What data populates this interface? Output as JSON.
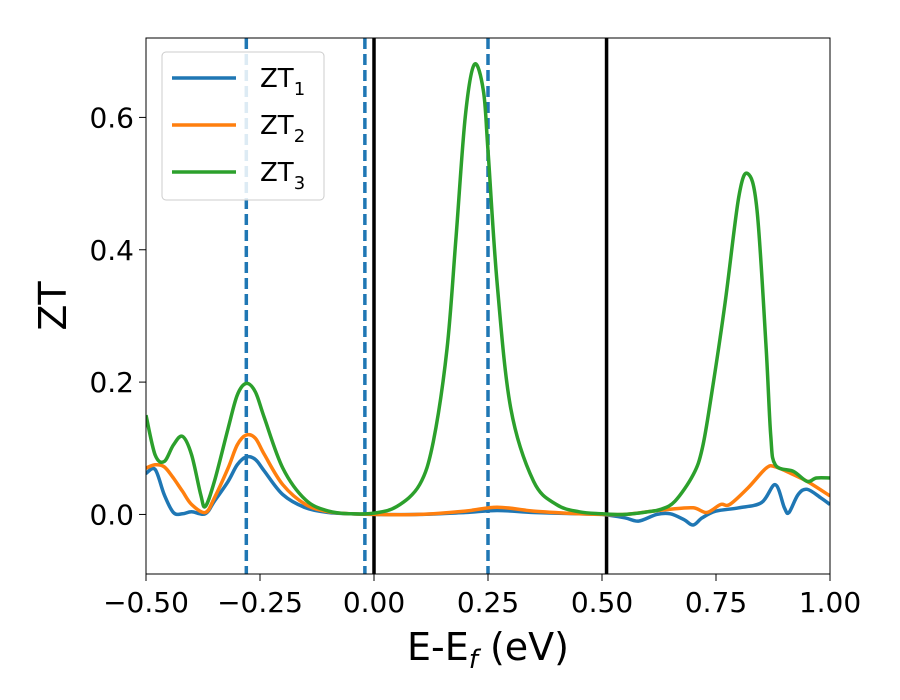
{
  "chart_data": {
    "type": "line",
    "xlabel": "E-E",
    "xlabel_sub": "f",
    "xlabel_unit": " (eV)",
    "ylabel": "ZT",
    "xlim": [
      -0.5,
      1.0
    ],
    "ylim": [
      -0.09,
      0.72
    ],
    "xticks": [
      -0.5,
      -0.25,
      0.0,
      0.25,
      0.5,
      0.75,
      1.0
    ],
    "xtick_labels": [
      "−0.50",
      "−0.25",
      "0.00",
      "0.25",
      "0.50",
      "0.75",
      "1.00"
    ],
    "yticks": [
      0.0,
      0.2,
      0.4,
      0.6
    ],
    "ytick_labels": [
      "0.0",
      "0.2",
      "0.4",
      "0.6"
    ],
    "grid": false,
    "legend_position": "top-left",
    "vlines_dashed": {
      "color": "#1f77b4",
      "x": [
        -0.28,
        -0.02,
        0.25
      ]
    },
    "vlines_solid": {
      "color": "#000000",
      "x": [
        0.0,
        0.51
      ]
    },
    "series": [
      {
        "name": "ZT",
        "subscript": "1",
        "color": "#1f77b4",
        "points": [
          [
            -0.5,
            0.062
          ],
          [
            -0.48,
            0.068
          ],
          [
            -0.46,
            0.03
          ],
          [
            -0.44,
            0.003
          ],
          [
            -0.42,
            0.001
          ],
          [
            -0.4,
            0.004
          ],
          [
            -0.37,
            0.001
          ],
          [
            -0.35,
            0.02
          ],
          [
            -0.32,
            0.05
          ],
          [
            -0.3,
            0.075
          ],
          [
            -0.28,
            0.087
          ],
          [
            -0.26,
            0.083
          ],
          [
            -0.24,
            0.065
          ],
          [
            -0.2,
            0.03
          ],
          [
            -0.15,
            0.01
          ],
          [
            -0.1,
            0.003
          ],
          [
            -0.05,
            0.001
          ],
          [
            0.0,
            0.0
          ],
          [
            0.1,
            0.0
          ],
          [
            0.2,
            0.003
          ],
          [
            0.27,
            0.006
          ],
          [
            0.35,
            0.003
          ],
          [
            0.45,
            0.001
          ],
          [
            0.5,
            0.0
          ],
          [
            0.55,
            -0.005
          ],
          [
            0.58,
            -0.01
          ],
          [
            0.62,
            0.0
          ],
          [
            0.65,
            0.001
          ],
          [
            0.68,
            -0.008
          ],
          [
            0.7,
            -0.016
          ],
          [
            0.72,
            -0.005
          ],
          [
            0.75,
            0.005
          ],
          [
            0.8,
            0.01
          ],
          [
            0.85,
            0.018
          ],
          [
            0.88,
            0.045
          ],
          [
            0.9,
            0.01
          ],
          [
            0.91,
            0.003
          ],
          [
            0.93,
            0.03
          ],
          [
            0.95,
            0.038
          ],
          [
            0.98,
            0.025
          ],
          [
            1.0,
            0.015
          ]
        ]
      },
      {
        "name": "ZT",
        "subscript": "2",
        "color": "#ff7f0e",
        "points": [
          [
            -0.5,
            0.07
          ],
          [
            -0.48,
            0.075
          ],
          [
            -0.46,
            0.072
          ],
          [
            -0.44,
            0.055
          ],
          [
            -0.42,
            0.035
          ],
          [
            -0.4,
            0.015
          ],
          [
            -0.37,
            0.003
          ],
          [
            -0.35,
            0.025
          ],
          [
            -0.32,
            0.07
          ],
          [
            -0.3,
            0.105
          ],
          [
            -0.28,
            0.12
          ],
          [
            -0.26,
            0.115
          ],
          [
            -0.24,
            0.09
          ],
          [
            -0.2,
            0.045
          ],
          [
            -0.15,
            0.015
          ],
          [
            -0.1,
            0.004
          ],
          [
            -0.05,
            0.001
          ],
          [
            0.0,
            0.0
          ],
          [
            0.1,
            0.0
          ],
          [
            0.2,
            0.005
          ],
          [
            0.27,
            0.011
          ],
          [
            0.35,
            0.005
          ],
          [
            0.45,
            0.001
          ],
          [
            0.5,
            0.0
          ],
          [
            0.55,
            0.0
          ],
          [
            0.6,
            0.004
          ],
          [
            0.65,
            0.008
          ],
          [
            0.7,
            0.01
          ],
          [
            0.73,
            0.003
          ],
          [
            0.76,
            0.015
          ],
          [
            0.78,
            0.015
          ],
          [
            0.82,
            0.04
          ],
          [
            0.86,
            0.07
          ],
          [
            0.88,
            0.072
          ],
          [
            0.92,
            0.06
          ],
          [
            0.95,
            0.05
          ],
          [
            1.0,
            0.028
          ]
        ]
      },
      {
        "name": "ZT",
        "subscript": "3",
        "color": "#2ca02c",
        "points": [
          [
            -0.5,
            0.15
          ],
          [
            -0.48,
            0.09
          ],
          [
            -0.46,
            0.08
          ],
          [
            -0.44,
            0.105
          ],
          [
            -0.42,
            0.118
          ],
          [
            -0.4,
            0.09
          ],
          [
            -0.38,
            0.03
          ],
          [
            -0.37,
            0.012
          ],
          [
            -0.35,
            0.05
          ],
          [
            -0.32,
            0.13
          ],
          [
            -0.3,
            0.18
          ],
          [
            -0.28,
            0.198
          ],
          [
            -0.26,
            0.185
          ],
          [
            -0.24,
            0.145
          ],
          [
            -0.2,
            0.07
          ],
          [
            -0.15,
            0.022
          ],
          [
            -0.1,
            0.005
          ],
          [
            -0.05,
            0.001
          ],
          [
            0.0,
            0.002
          ],
          [
            0.05,
            0.012
          ],
          [
            0.1,
            0.045
          ],
          [
            0.13,
            0.11
          ],
          [
            0.16,
            0.25
          ],
          [
            0.18,
            0.42
          ],
          [
            0.2,
            0.6
          ],
          [
            0.22,
            0.68
          ],
          [
            0.24,
            0.64
          ],
          [
            0.25,
            0.55
          ],
          [
            0.27,
            0.35
          ],
          [
            0.3,
            0.16
          ],
          [
            0.35,
            0.05
          ],
          [
            0.4,
            0.015
          ],
          [
            0.45,
            0.004
          ],
          [
            0.5,
            0.001
          ],
          [
            0.55,
            0.0
          ],
          [
            0.6,
            0.004
          ],
          [
            0.63,
            0.008
          ],
          [
            0.66,
            0.02
          ],
          [
            0.7,
            0.06
          ],
          [
            0.72,
            0.1
          ],
          [
            0.74,
            0.18
          ],
          [
            0.77,
            0.32
          ],
          [
            0.8,
            0.48
          ],
          [
            0.82,
            0.515
          ],
          [
            0.84,
            0.46
          ],
          [
            0.86,
            0.25
          ],
          [
            0.87,
            0.12
          ],
          [
            0.88,
            0.075
          ],
          [
            0.92,
            0.065
          ],
          [
            0.95,
            0.05
          ],
          [
            0.97,
            0.055
          ],
          [
            1.0,
            0.055
          ]
        ]
      }
    ]
  }
}
